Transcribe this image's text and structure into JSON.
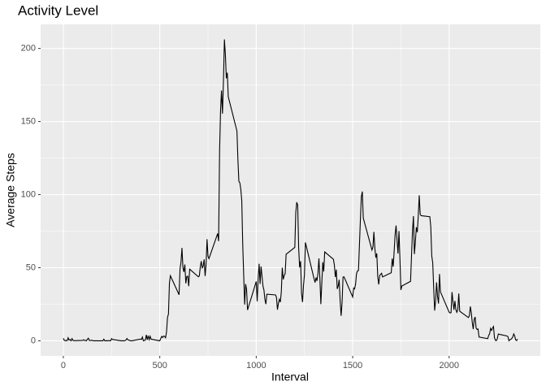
{
  "chart_data": {
    "type": "line",
    "title": "Activity Level",
    "x_label": "Interval",
    "y_label": "Average Steps",
    "x": [
      0,
      5,
      10,
      15,
      20,
      25,
      30,
      35,
      40,
      45,
      50,
      55,
      100,
      105,
      110,
      115,
      120,
      125,
      130,
      135,
      140,
      145,
      150,
      155,
      200,
      205,
      210,
      215,
      220,
      225,
      230,
      235,
      240,
      245,
      250,
      255,
      300,
      305,
      310,
      315,
      320,
      325,
      330,
      335,
      340,
      345,
      350,
      355,
      400,
      405,
      410,
      415,
      420,
      425,
      430,
      435,
      440,
      445,
      450,
      455,
      500,
      505,
      510,
      515,
      520,
      525,
      530,
      535,
      540,
      545,
      550,
      555,
      600,
      605,
      610,
      615,
      620,
      625,
      630,
      635,
      640,
      645,
      650,
      655,
      700,
      705,
      710,
      715,
      720,
      725,
      730,
      735,
      740,
      745,
      750,
      755,
      800,
      805,
      810,
      815,
      820,
      825,
      830,
      835,
      840,
      845,
      850,
      855,
      900,
      905,
      910,
      915,
      920,
      925,
      930,
      935,
      940,
      945,
      950,
      955,
      1000,
      1005,
      1010,
      1015,
      1020,
      1025,
      1030,
      1035,
      1040,
      1045,
      1050,
      1055,
      1100,
      1105,
      1110,
      1115,
      1120,
      1125,
      1130,
      1135,
      1140,
      1145,
      1150,
      1155,
      1200,
      1205,
      1210,
      1215,
      1220,
      1225,
      1230,
      1235,
      1240,
      1245,
      1250,
      1255,
      1300,
      1305,
      1310,
      1315,
      1320,
      1325,
      1330,
      1335,
      1340,
      1345,
      1350,
      1355,
      1400,
      1405,
      1410,
      1415,
      1420,
      1425,
      1430,
      1435,
      1440,
      1445,
      1450,
      1455,
      1500,
      1505,
      1510,
      1515,
      1520,
      1525,
      1530,
      1535,
      1540,
      1545,
      1550,
      1555,
      1600,
      1605,
      1610,
      1615,
      1620,
      1625,
      1630,
      1635,
      1640,
      1645,
      1650,
      1655,
      1700,
      1705,
      1710,
      1715,
      1720,
      1725,
      1730,
      1735,
      1740,
      1745,
      1750,
      1755,
      1800,
      1805,
      1810,
      1815,
      1820,
      1825,
      1830,
      1835,
      1840,
      1845,
      1850,
      1855,
      1900,
      1905,
      1910,
      1915,
      1920,
      1925,
      1930,
      1935,
      1940,
      1945,
      1950,
      1955,
      2000,
      2005,
      2010,
      2015,
      2020,
      2025,
      2030,
      2035,
      2040,
      2045,
      2050,
      2055,
      2100,
      2105,
      2110,
      2115,
      2120,
      2125,
      2130,
      2135,
      2140,
      2145,
      2150,
      2155,
      2200,
      2205,
      2210,
      2215,
      2220,
      2225,
      2230,
      2235,
      2240,
      2245,
      2250,
      2255,
      2300,
      2305,
      2310,
      2315,
      2320,
      2325,
      2330,
      2335,
      2340,
      2345,
      2350,
      2355
    ],
    "values": [
      1.7,
      0.3,
      0.1,
      0.2,
      0.1,
      2.1,
      0.5,
      0.9,
      0,
      1.5,
      0.3,
      0.1,
      0.3,
      0.7,
      0.2,
      0.3,
      0,
      1.1,
      1.8,
      0.2,
      0.2,
      0.4,
      0.3,
      0,
      0,
      0,
      1.1,
      0,
      0,
      0.1,
      0,
      0.2,
      0,
      0,
      1.5,
      0.9,
      0,
      0,
      0,
      0,
      0.2,
      0.6,
      1.6,
      0.6,
      0.5,
      0.1,
      0,
      0,
      1.2,
      0.9,
      2.6,
      0,
      0.3,
      0.4,
      4.1,
      0.7,
      3.5,
      0.8,
      3.1,
      1.1,
      0,
      1.6,
      3,
      2.2,
      3.3,
      3,
      2.1,
      6.1,
      16,
      18.3,
      39.5,
      44.5,
      31.5,
      49.3,
      53.8,
      63.5,
      50,
      47.1,
      52.2,
      39.3,
      44,
      44.2,
      37.4,
      49,
      43.8,
      44.4,
      50.5,
      54.5,
      49.9,
      51,
      55.7,
      44.3,
      52.3,
      69.5,
      57.8,
      56.2,
      73.4,
      68.2,
      129.4,
      157.5,
      171.2,
      155.4,
      177.3,
      206.2,
      195.9,
      179.6,
      183.4,
      167,
      143.5,
      124,
      109.1,
      108.1,
      103.7,
      95.96,
      66.2,
      45.2,
      24.8,
      38.8,
      35,
      21.1,
      40.6,
      26.98,
      42.4,
      52.7,
      38.9,
      50.8,
      44.3,
      37.4,
      34.7,
      28.3,
      25.1,
      31.9,
      31.4,
      29.7,
      21.3,
      25.5,
      28.4,
      26.5,
      33.4,
      50,
      42,
      44.6,
      46,
      59.2,
      63.9,
      87.7,
      94.8,
      92.8,
      63.4,
      50.2,
      54.5,
      32.4,
      26.5,
      37.7,
      45.1,
      67.3,
      42.3,
      39.9,
      43.3,
      40.98,
      46.2,
      56.4,
      42.8,
      25.1,
      39.5,
      53.8,
      47.4,
      60.8,
      55.8,
      51.96,
      43.6,
      48.7,
      35.5,
      37.5,
      41.8,
      27.5,
      17.1,
      26.1,
      43.6,
      43.8,
      30,
      36.1,
      35.5,
      38.8,
      45.96,
      47.8,
      48.1,
      65.3,
      82.9,
      98.7,
      102.1,
      83.96,
      62.1,
      64.1,
      74.5,
      63.2,
      56.9,
      59.8,
      43.9,
      38.6,
      44.7,
      45.5,
      46.2,
      43.7,
      46.6,
      56.3,
      50.7,
      61.2,
      72.7,
      78.9,
      68.9,
      59.7,
      75.1,
      56.5,
      34.8,
      37.5,
      40.7,
      58,
      74.7,
      85.3,
      59.3,
      67.8,
      77.7,
      74.2,
      85.3,
      99.5,
      86.6,
      85.6,
      84.9,
      77.8,
      58,
      53.4,
      36.3,
      20.7,
      27.4,
      40,
      30.2,
      25.5,
      45.7,
      33.5,
      19.6,
      19,
      19.3,
      33.3,
      26.8,
      21.2,
      27.3,
      21.3,
      19.5,
      21.3,
      32.3,
      20.2,
      15.9,
      17.2,
      23.5,
      19.2,
      12.5,
      8,
      14.7,
      16.3,
      8.7,
      7.8,
      8.1,
      2.6,
      1.5,
      3.7,
      4.8,
      8.5,
      7.1,
      8.7,
      9.8,
      2.2,
      0.3,
      0.1,
      1.6,
      4.6,
      3.3,
      2.8,
      0,
      0.8,
      0.96,
      1.6,
      2.6,
      4.7,
      3.3,
      0.6,
      0.2,
      1.1
    ],
    "color": "#000000",
    "xlim": [
      -117.75,
      2472.75
    ],
    "ylim": [
      -10.31,
      216.48
    ],
    "xticks": [
      0,
      500,
      1000,
      1500,
      2000
    ],
    "yticks": [
      0,
      50,
      100,
      150,
      200
    ],
    "grid": true
  }
}
